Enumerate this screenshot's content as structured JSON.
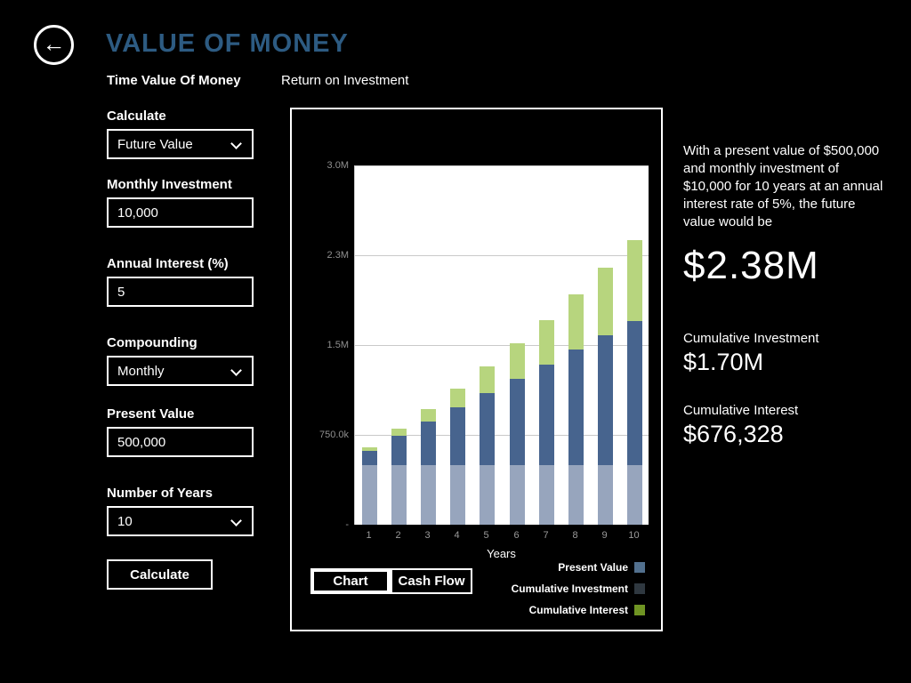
{
  "app": {
    "title": "VALUE OF MONEY",
    "back_icon": "left-arrow"
  },
  "tabs": [
    {
      "label": "Time Value Of Money",
      "active": true
    },
    {
      "label": "Return on Investment",
      "active": false
    }
  ],
  "form": {
    "fields": [
      {
        "type": "select",
        "label": "Calculate",
        "value": "Future Value"
      },
      {
        "type": "input",
        "label": "Monthly Investment",
        "value": "10,000"
      },
      {
        "type": "input",
        "label": "Annual Interest (%)",
        "value": "5"
      },
      {
        "type": "select",
        "label": "Compounding",
        "value": "Monthly"
      },
      {
        "type": "input",
        "label": "Present Value",
        "value": "500,000"
      },
      {
        "type": "select",
        "label": "Number of Years",
        "value": "10"
      }
    ],
    "submit_label": "Calculate"
  },
  "chart_toolbar": {
    "buttons": [
      {
        "label": "Chart",
        "active": true
      },
      {
        "label": "Cash Flow",
        "active": false
      }
    ]
  },
  "chart_data": {
    "type": "bar",
    "stacked": true,
    "categories": [
      "1",
      "2",
      "3",
      "4",
      "5",
      "6",
      "7",
      "8",
      "9",
      "10"
    ],
    "xlabel": "Years",
    "ylim": [
      0,
      3000000
    ],
    "grid": true,
    "legend_position": "bottom-right",
    "yticks": [
      {
        "value": 3000000,
        "label": "3.0M"
      },
      {
        "value": 2250000,
        "label": "2.3M"
      },
      {
        "value": 1500000,
        "label": "1.5M"
      },
      {
        "value": 750000,
        "label": "750.0k"
      },
      {
        "value": 0,
        "label": "-"
      }
    ],
    "series": [
      {
        "name": "Present Value",
        "color": "#97a5bd",
        "legend_color": "#52708e",
        "values": [
          500000,
          500000,
          500000,
          500000,
          500000,
          500000,
          500000,
          500000,
          500000,
          500000
        ]
      },
      {
        "name": "Cumulative Investment",
        "color": "#47648e",
        "legend_color": "#2f3840",
        "values": [
          120000,
          240000,
          360000,
          480000,
          600000,
          720000,
          840000,
          960000,
          1080000,
          1200000
        ]
      },
      {
        "name": "Cumulative Interest",
        "color": "#b7d57e",
        "legend_color": "#6f9423",
        "values": [
          28371,
          64331,
          108268,
          160596,
          221740,
          292152,
          372305,
          462698,
          563858,
          676328
        ]
      }
    ]
  },
  "summary": {
    "description": "With a present value of $500,000 and monthly investment of $10,000 for 10 years at an annual interest rate of 5%, the future value would be",
    "future_value": "$2.38M",
    "items": [
      {
        "label": "Cumulative Investment",
        "value": "$1.70M"
      },
      {
        "label": "Cumulative Interest",
        "value": "$676,328"
      }
    ]
  }
}
